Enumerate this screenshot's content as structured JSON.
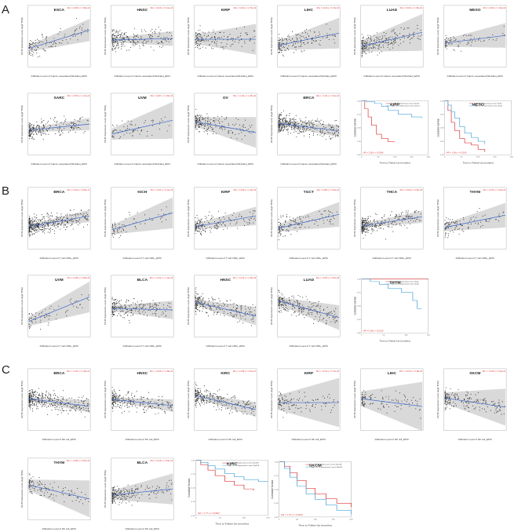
{
  "sections": [
    "A",
    "B",
    "C"
  ],
  "colors": {
    "point": "#2b2b2b",
    "fit": "#3a66c9",
    "band": "#c9c9c9",
    "red": "#e0393a",
    "blue": "#4aa3d8",
    "stat": "#e23b3b"
  },
  "chart_data": [
    {
      "type": "scatter",
      "section": "A",
      "title": "ESCA",
      "stat": "Rho = 0.185  p = 1.58e-02",
      "xlabel": "Infiltration Level of Cancer associated fibroblast_EPIC",
      "ylabel": "CCT6 Expression Level (log2 TPM)",
      "slope": 0.6,
      "band": 0.18,
      "n": 120
    },
    {
      "type": "scatter",
      "section": "A",
      "title": "HNSC",
      "stat": "Rho = 0.126  p = 5.21e-03",
      "xlabel": "Infiltration Level of Cancer associated fibroblast_EPIC",
      "ylabel": "CCT6 Expression Level (log2 TPM)",
      "slope": 0.05,
      "band": 0.12,
      "n": 260
    },
    {
      "type": "scatter",
      "section": "A",
      "title": "KIRP",
      "stat": "Rho = 0.132  p = 2.75e-02",
      "xlabel": "Infiltration Level of Cancer associated fibroblast_EPIC",
      "ylabel": "CCT6 Expression Level (log2 TPM)",
      "slope": 0.0,
      "band": 0.25,
      "n": 160
    },
    {
      "type": "scatter",
      "section": "A",
      "title": "LIHC",
      "stat": "Rho = 0.146  p = 6.79e-03",
      "xlabel": "Infiltration Level of Cancer associated fibroblast_EPIC",
      "ylabel": "CCT6 Expression Level (log2 TPM)",
      "slope": 0.4,
      "band": 0.25,
      "n": 180
    },
    {
      "type": "scatter",
      "section": "A",
      "title": "LUAD",
      "stat": "Rho = 0.106  p = 1.95e-02",
      "xlabel": "Infiltration Level of Cancer associated fibroblast_EPIC",
      "ylabel": "CCT6 Expression Level (log2 TPM)",
      "slope": 0.45,
      "band": 0.3,
      "n": 250
    },
    {
      "type": "scatter",
      "section": "A",
      "title": "MESO",
      "stat": "Rho = 0.252  p = 1.93e-02",
      "xlabel": "Infiltration Level of Cancer associated fibroblast_EPIC",
      "ylabel": "CCT6 Expression Level (log2 TPM)",
      "slope": 0.25,
      "band": 0.2,
      "n": 80
    },
    {
      "type": "scatter",
      "section": "A",
      "title": "SARC",
      "stat": "Rho = 0.155  p = 1.31e-02",
      "xlabel": "Infiltration Level of Cancer associated fibroblast_EPIC",
      "ylabel": "CCT6 Expression Level (log2 TPM)",
      "slope": 0.2,
      "band": 0.1,
      "n": 230
    },
    {
      "type": "scatter",
      "section": "A",
      "title": "UVM",
      "stat": "Rho = 0.267  p = 1.80e-02",
      "xlabel": "Infiltration Level of Cancer associated fibroblast_EPIC",
      "ylabel": "CCT6 Expression Level (log2 TPM)",
      "slope": 0.45,
      "band": 0.3,
      "n": 75
    },
    {
      "type": "scatter",
      "section": "A",
      "title": "OV",
      "stat": "Rho = -0.114  p = 1.25e-02",
      "xlabel": "Infiltration Level of Cancer associated fibroblast_EPIC",
      "ylabel": "CCT6 Expression Level (log2 TPM)",
      "slope": -0.35,
      "band": 0.25,
      "n": 200
    },
    {
      "type": "scatter",
      "section": "A",
      "title": "BRCA",
      "stat": "Rho = -0.114  p = 3.22e-04",
      "xlabel": "Infiltration Level of Cancer associated fibroblast_EPIC",
      "ylabel": "CCT6 Expression Level (log2 TPM)",
      "slope": -0.25,
      "band": 0.1,
      "n": 420
    },
    {
      "type": "survival",
      "section": "A",
      "title": "KIRP",
      "legend": [
        "Low CCT6 Expression Level, N=117",
        "High CCT6 Expression Level, N=117"
      ],
      "xlabel": "Time to Follow-Up (months)",
      "ylabel": "Cumulative Survival",
      "xticks": [
        "0",
        "50",
        "100",
        "150",
        "200"
      ],
      "yticks": [
        "0.00",
        "0.25",
        "0.50",
        "0.75",
        "1.00"
      ],
      "p": "HR = 3.58  p = 0.0008",
      "red": [
        [
          0,
          1
        ],
        [
          10,
          0.85
        ],
        [
          20,
          0.7
        ],
        [
          30,
          0.55
        ],
        [
          45,
          0.38
        ],
        [
          60,
          0.3
        ],
        [
          80,
          0.24
        ],
        [
          100,
          0.24
        ]
      ],
      "blue": [
        [
          0,
          1
        ],
        [
          15,
          0.98
        ],
        [
          40,
          0.95
        ],
        [
          60,
          0.9
        ],
        [
          80,
          0.82
        ],
        [
          110,
          0.75
        ],
        [
          150,
          0.7
        ],
        [
          180,
          0.68
        ]
      ]
    },
    {
      "type": "survival",
      "section": "A",
      "title": "MESO",
      "legend": [
        "Low CCT6 Expression Level, N=43",
        "High CCT6 Expression Level, N=43"
      ],
      "xlabel": "Time to Follow-Up (months)",
      "ylabel": "Cumulative Survival",
      "xticks": [
        "0",
        "50",
        "100",
        "150",
        "200"
      ],
      "yticks": [
        "0.00",
        "0.25",
        "0.50",
        "0.75",
        "1.00"
      ],
      "p": "HR = 1.86  p = 0.0108",
      "red": [
        [
          0,
          1
        ],
        [
          10,
          0.82
        ],
        [
          20,
          0.6
        ],
        [
          30,
          0.45
        ],
        [
          45,
          0.3
        ],
        [
          60,
          0.22
        ],
        [
          80,
          0.18
        ],
        [
          100,
          0.1
        ],
        [
          120,
          0.05
        ]
      ],
      "blue": [
        [
          0,
          1
        ],
        [
          10,
          0.92
        ],
        [
          20,
          0.8
        ],
        [
          30,
          0.68
        ],
        [
          45,
          0.52
        ],
        [
          60,
          0.4
        ],
        [
          80,
          0.32
        ],
        [
          100,
          0.25
        ],
        [
          120,
          0.2
        ]
      ]
    },
    {
      "type": "scatter",
      "section": "B",
      "title": "BRCA",
      "stat": "Rho = 0.202  p = 8.68e-11",
      "xlabel": "Infiltration Level of T cell CD8+_EPIC",
      "ylabel": "CCT6 Expression Level (log2 TPM)",
      "slope": 0.35,
      "band": 0.1,
      "n": 420
    },
    {
      "type": "scatter",
      "section": "B",
      "title": "KICH",
      "stat": "Rho = 0.314  p = 5.12e-03",
      "xlabel": "Infiltration Level of T cell CD8+_EPIC",
      "ylabel": "CCT6 Expression Level (log2 TPM)",
      "slope": 0.55,
      "band": 0.25,
      "n": 70
    },
    {
      "type": "scatter",
      "section": "B",
      "title": "KIRP",
      "stat": "Rho = 0.228  p = 1.26e-04",
      "xlabel": "Infiltration Level of T cell CD8+_EPIC",
      "ylabel": "CCT6 Expression Level (log2 TPM)",
      "slope": 0.35,
      "band": 0.15,
      "n": 180
    },
    {
      "type": "scatter",
      "section": "B",
      "title": "TGCT",
      "stat": "Rho = 0.286  p = 3.20e-04",
      "xlabel": "Infiltration Level of T cell CD8+_EPIC",
      "ylabel": "CCT6 Expression Level (log2 TPM)",
      "slope": 0.45,
      "band": 0.2,
      "n": 140
    },
    {
      "type": "scatter",
      "section": "B",
      "title": "THCA",
      "stat": "Rho = 0.199  p = 9.40e-06",
      "xlabel": "Infiltration Level of T cell CD8+_EPIC",
      "ylabel": "CCT6 Expression Level (log2 TPM)",
      "slope": 0.3,
      "band": 0.1,
      "n": 300
    },
    {
      "type": "scatter",
      "section": "B",
      "title": "THYM",
      "stat": "Rho = 0.276  p = 2.82e-03",
      "xlabel": "Infiltration Level of T cell CD8+_EPIC",
      "ylabel": "CCT6 Expression Level (log2 TPM)",
      "slope": 0.4,
      "band": 0.2,
      "n": 110
    },
    {
      "type": "scatter",
      "section": "B",
      "title": "UVM",
      "stat": "Rho = 0.448  p = 3.68e-05",
      "xlabel": "Infiltration Level of T cell CD8+_EPIC",
      "ylabel": "CCT6 Expression Level (log2 TPM)",
      "slope": 0.8,
      "band": 0.25,
      "n": 75
    },
    {
      "type": "scatter",
      "section": "B",
      "title": "BLCA",
      "stat": "Rho = -0.132  p = 1.14e-02",
      "xlabel": "Infiltration Level of T cell CD8+_EPIC",
      "ylabel": "CCT6 Expression Level (log2 TPM)",
      "slope": -0.05,
      "band": 0.15,
      "n": 220
    },
    {
      "type": "scatter",
      "section": "B",
      "title": "HNSC",
      "stat": "Rho = -0.214  p = 1.69e-06",
      "xlabel": "Infiltration Level of T cell CD8+_EPIC",
      "ylabel": "CCT6 Expression Level (log2 TPM)",
      "slope": -0.45,
      "band": 0.15,
      "n": 260
    },
    {
      "type": "scatter",
      "section": "B",
      "title": "LUAD",
      "stat": "Rho = -0.186  p = 3.63e-05",
      "xlabel": "Infiltration Level of T cell CD8+_EPIC",
      "ylabel": "CCT6 Expression Level (log2 TPM)",
      "slope": -0.55,
      "band": 0.2,
      "n": 250
    },
    {
      "type": "survival",
      "section": "B",
      "title": "THYM",
      "legend": [
        "Low CCT6 Expression Level, N=60",
        "High CCT6 Expression Level, N=60"
      ],
      "xlabel": "Time to Follow-Up (months)",
      "ylabel": "Cumulative Survival",
      "xticks": [
        "0",
        "50",
        "100",
        "150"
      ],
      "yticks": [
        "0.00",
        "0.25",
        "0.50",
        "0.75",
        "1.00"
      ],
      "p": "HR = 0.08  p = 0.0138",
      "red": [
        [
          0,
          1
        ],
        [
          30,
          1
        ],
        [
          60,
          1
        ],
        [
          90,
          1
        ],
        [
          130,
          1
        ],
        [
          150,
          1
        ]
      ],
      "blue": [
        [
          0,
          1
        ],
        [
          20,
          0.95
        ],
        [
          40,
          0.9
        ],
        [
          60,
          0.82
        ],
        [
          90,
          0.75
        ],
        [
          115,
          0.6
        ],
        [
          125,
          0.45
        ],
        [
          135,
          0.45
        ]
      ]
    },
    {
      "type": "scatter",
      "section": "C",
      "title": "BRCA",
      "stat": "Rho = -0.116  p = 2.48e-04",
      "xlabel": "Infiltration Level of NK cell_EPIC",
      "ylabel": "CCT6 Expression Level (log2 TPM)",
      "slope": -0.25,
      "band": 0.1,
      "n": 380
    },
    {
      "type": "scatter",
      "section": "C",
      "title": "HNSC",
      "stat": "Rho = -0.165  p = 2.38e-04",
      "xlabel": "Infiltration Level of NK cell_EPIC",
      "ylabel": "CCT6 Expression Level (log2 TPM)",
      "slope": -0.2,
      "band": 0.1,
      "n": 260
    },
    {
      "type": "scatter",
      "section": "C",
      "title": "KIRC",
      "stat": "Rho = -0.238  p = 2.01e-07",
      "xlabel": "Infiltration Level of NK cell_EPIC",
      "ylabel": "CCT6 Expression Level (log2 TPM)",
      "slope": -0.45,
      "band": 0.12,
      "n": 280
    },
    {
      "type": "scatter",
      "section": "C",
      "title": "KIRP",
      "stat": "Rho = -0.132  p = 2.73e-02",
      "xlabel": "Infiltration Level of NK cell_EPIC",
      "ylabel": "CCT6 Expression Level (log2 TPM)",
      "slope": 0.0,
      "band": 0.4,
      "n": 120
    },
    {
      "type": "scatter",
      "section": "C",
      "title": "LIHC",
      "stat": "Rho = -0.146  p = 6.48e-03",
      "xlabel": "Infiltration Level of NK cell_EPIC",
      "ylabel": "CCT6 Expression Level (log2 TPM)",
      "slope": -0.25,
      "band": 0.4,
      "n": 120
    },
    {
      "type": "scatter",
      "section": "C",
      "title": "SKCM",
      "stat": "Rho = -0.139  p = 2.90e-03",
      "xlabel": "Infiltration Level of NK cell_EPIC",
      "ylabel": "CCT6 Expression Level (log2 TPM)",
      "slope": -0.3,
      "band": 0.3,
      "n": 200
    },
    {
      "type": "scatter",
      "section": "C",
      "title": "THYM",
      "stat": "Rho = -0.268  p = 3.84e-03",
      "xlabel": "Infiltration Level of NK cell_EPIC",
      "ylabel": "CCT6 Expression Level (log2 TPM)",
      "slope": -0.45,
      "band": 0.3,
      "n": 120
    },
    {
      "type": "scatter",
      "section": "C",
      "title": "BLCA",
      "stat": "Rho = 0.148  p = 4.53e-03",
      "xlabel": "Infiltration Level of NK cell_EPIC",
      "ylabel": "CCT6 Expression Level (log2 TPM)",
      "slope": 0.2,
      "band": 0.25,
      "n": 220
    },
    {
      "type": "survival",
      "section": "C",
      "title": "KIRC",
      "legend": [
        "Low CCT6 Expression Level, N=258",
        "High CCT6 Expression Level, N=258"
      ],
      "xlabel": "Time to Follow-Up (months)",
      "ylabel": "Cumulative Survival",
      "xticks": [
        "0",
        "50",
        "100",
        "150"
      ],
      "yticks": [
        "0.00",
        "0.25",
        "0.50",
        "0.75",
        "1.00"
      ],
      "p": "HR = 1.77  p = 0.0003",
      "red": [
        [
          0,
          1
        ],
        [
          10,
          0.92
        ],
        [
          25,
          0.82
        ],
        [
          40,
          0.72
        ],
        [
          60,
          0.62
        ],
        [
          80,
          0.55
        ],
        [
          100,
          0.48
        ],
        [
          120,
          0.45
        ]
      ],
      "blue": [
        [
          0,
          1
        ],
        [
          10,
          0.96
        ],
        [
          25,
          0.9
        ],
        [
          40,
          0.84
        ],
        [
          60,
          0.76
        ],
        [
          80,
          0.7
        ],
        [
          100,
          0.65
        ],
        [
          130,
          0.62
        ],
        [
          150,
          0.62
        ]
      ]
    },
    {
      "type": "survival",
      "section": "C",
      "title": "SKCM",
      "legend": [
        "Low CCT6 Expression Level, N=229",
        "High CCT6 Expression Level, N=229"
      ],
      "xlabel": "Time to Follow-Up (months)",
      "ylabel": "Cumulative Survival",
      "xticks": [
        "0",
        "50",
        "100",
        "150",
        "200"
      ],
      "yticks": [
        "0.00",
        "0.25",
        "0.50",
        "0.75",
        "1.00"
      ],
      "p": "HR = 1.37  p = 0.0106",
      "red": [
        [
          0,
          1
        ],
        [
          15,
          0.92
        ],
        [
          30,
          0.8
        ],
        [
          50,
          0.66
        ],
        [
          75,
          0.52
        ],
        [
          100,
          0.42
        ],
        [
          130,
          0.33
        ],
        [
          160,
          0.25
        ],
        [
          200,
          0.18
        ]
      ],
      "blue": [
        [
          0,
          1
        ],
        [
          15,
          0.88
        ],
        [
          30,
          0.72
        ],
        [
          50,
          0.56
        ],
        [
          75,
          0.42
        ],
        [
          100,
          0.32
        ],
        [
          130,
          0.22
        ],
        [
          160,
          0.12
        ],
        [
          200,
          0.05
        ]
      ]
    }
  ]
}
